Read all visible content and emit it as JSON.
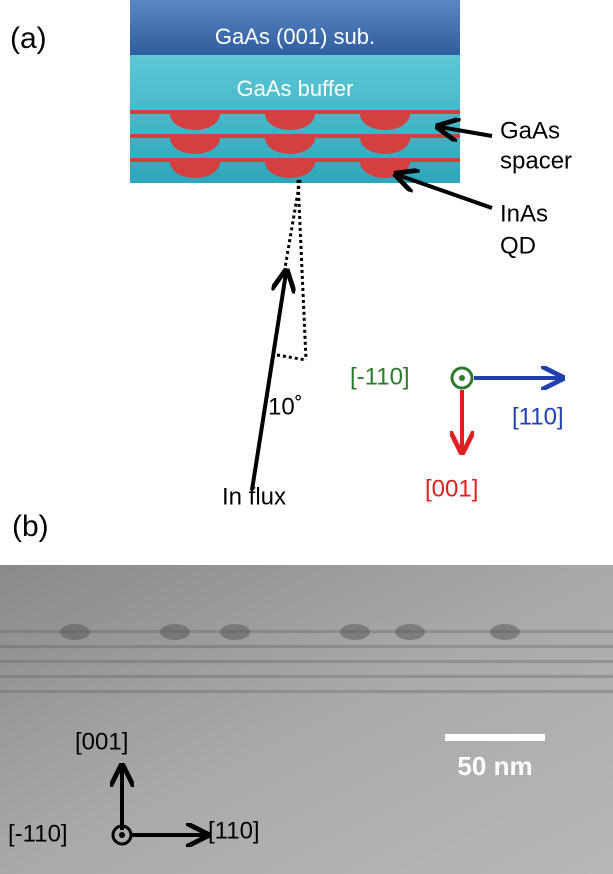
{
  "panel_a": {
    "label": "(a)",
    "layers": {
      "substrate": "GaAs (001) sub.",
      "buffer": "GaAs buffer"
    },
    "annotations": {
      "spacer": [
        "GaAs",
        "spacer"
      ],
      "dot": [
        "InAs",
        "QD"
      ],
      "angle": "10˚",
      "flux": "In flux"
    },
    "axes": {
      "out": "[-110]",
      "right": "[110]",
      "down": "[001]"
    }
  },
  "panel_b": {
    "label": "(b)",
    "axes": {
      "up": "[001]",
      "out": "[-110]",
      "right": "[110]"
    },
    "scale_bar": "50 nm"
  }
}
